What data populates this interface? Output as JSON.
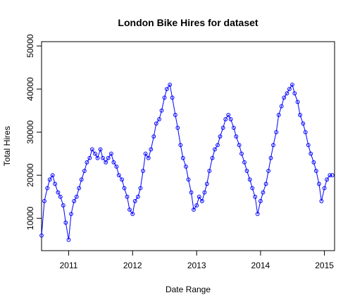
{
  "chart_data": {
    "type": "line",
    "title": "London Bike Hires for dataset",
    "xlabel": "Date Range",
    "ylabel": "Total Hires",
    "x_ticks": [
      "2011",
      "2012",
      "2013",
      "2014",
      "2015"
    ],
    "y_ticks": [
      10000,
      20000,
      30000,
      40000,
      50000
    ],
    "x_range": [
      "2010-07-30",
      "2015-02-28"
    ],
    "ylim": [
      2500,
      51000
    ],
    "series_color": "#0000ff",
    "markers": "open-circle",
    "grid": false,
    "legend": "none",
    "series": [
      {
        "x": [
          "2010-07-30",
          "2010-08-15",
          "2010-09-01",
          "2010-09-15",
          "2010-10-01",
          "2010-10-15",
          "2010-11-01",
          "2010-11-15",
          "2010-12-01",
          "2010-12-15",
          "2011-01-01",
          "2011-01-15",
          "2011-02-01",
          "2011-02-15",
          "2011-03-01",
          "2011-03-15",
          "2011-04-01",
          "2011-04-15",
          "2011-05-01",
          "2011-05-15",
          "2011-06-01",
          "2011-06-15",
          "2011-07-01",
          "2011-07-15",
          "2011-08-01",
          "2011-08-15",
          "2011-09-01",
          "2011-09-15",
          "2011-10-01",
          "2011-10-15",
          "2011-11-01",
          "2011-11-15",
          "2011-12-01",
          "2011-12-15",
          "2012-01-01",
          "2012-01-15",
          "2012-02-01",
          "2012-02-15",
          "2012-03-01",
          "2012-03-15",
          "2012-04-01",
          "2012-04-15",
          "2012-05-01",
          "2012-05-15",
          "2012-06-01",
          "2012-06-15",
          "2012-07-01",
          "2012-07-15",
          "2012-08-01",
          "2012-08-15",
          "2012-09-01",
          "2012-09-15",
          "2012-10-01",
          "2012-10-15",
          "2012-11-01",
          "2012-11-15",
          "2012-12-01",
          "2012-12-15",
          "2013-01-01",
          "2013-01-15",
          "2013-02-01",
          "2013-02-15",
          "2013-03-01",
          "2013-03-15",
          "2013-04-01",
          "2013-04-15",
          "2013-05-01",
          "2013-05-15",
          "2013-06-01",
          "2013-06-15",
          "2013-07-01",
          "2013-07-15",
          "2013-08-01",
          "2013-08-15",
          "2013-09-01",
          "2013-09-15",
          "2013-10-01",
          "2013-10-15",
          "2013-11-01",
          "2013-11-15",
          "2013-12-01",
          "2013-12-15",
          "2014-01-01",
          "2014-01-15",
          "2014-02-01",
          "2014-02-15",
          "2014-03-01",
          "2014-03-15",
          "2014-04-01",
          "2014-04-15",
          "2014-05-01",
          "2014-05-15",
          "2014-06-01",
          "2014-06-15",
          "2014-07-01",
          "2014-07-15",
          "2014-08-01",
          "2014-08-15",
          "2014-09-01",
          "2014-09-15",
          "2014-10-01",
          "2014-10-15",
          "2014-11-01",
          "2014-11-15",
          "2014-12-01",
          "2014-12-15",
          "2015-01-01",
          "2015-01-15",
          "2015-02-01",
          "2015-02-15"
        ],
        "y": [
          6000,
          14000,
          17000,
          19000,
          20000,
          18000,
          16000,
          15000,
          13000,
          9000,
          5000,
          11000,
          14000,
          15000,
          17000,
          19000,
          21000,
          23000,
          24000,
          26000,
          25000,
          24000,
          26000,
          24000,
          23000,
          24000,
          25000,
          23000,
          22000,
          20000,
          19000,
          17000,
          15000,
          12000,
          11000,
          14000,
          15000,
          17000,
          21000,
          25000,
          24000,
          26000,
          29000,
          32000,
          33000,
          35000,
          38000,
          40000,
          41000,
          38000,
          34000,
          31000,
          27000,
          24000,
          22000,
          19000,
          16000,
          12000,
          13000,
          15000,
          14000,
          16000,
          18000,
          21000,
          24000,
          26000,
          27000,
          29000,
          31000,
          33000,
          34000,
          33000,
          31000,
          29000,
          27000,
          25000,
          23000,
          21000,
          19000,
          17000,
          15000,
          11000,
          14000,
          16000,
          18000,
          21000,
          24000,
          27000,
          30000,
          34000,
          36000,
          38000,
          39000,
          40000,
          41000,
          39000,
          37000,
          34000,
          32000,
          30000,
          27000,
          25000,
          23000,
          21000,
          18000,
          14000,
          17000,
          19000,
          20000,
          20000
        ]
      }
    ]
  }
}
